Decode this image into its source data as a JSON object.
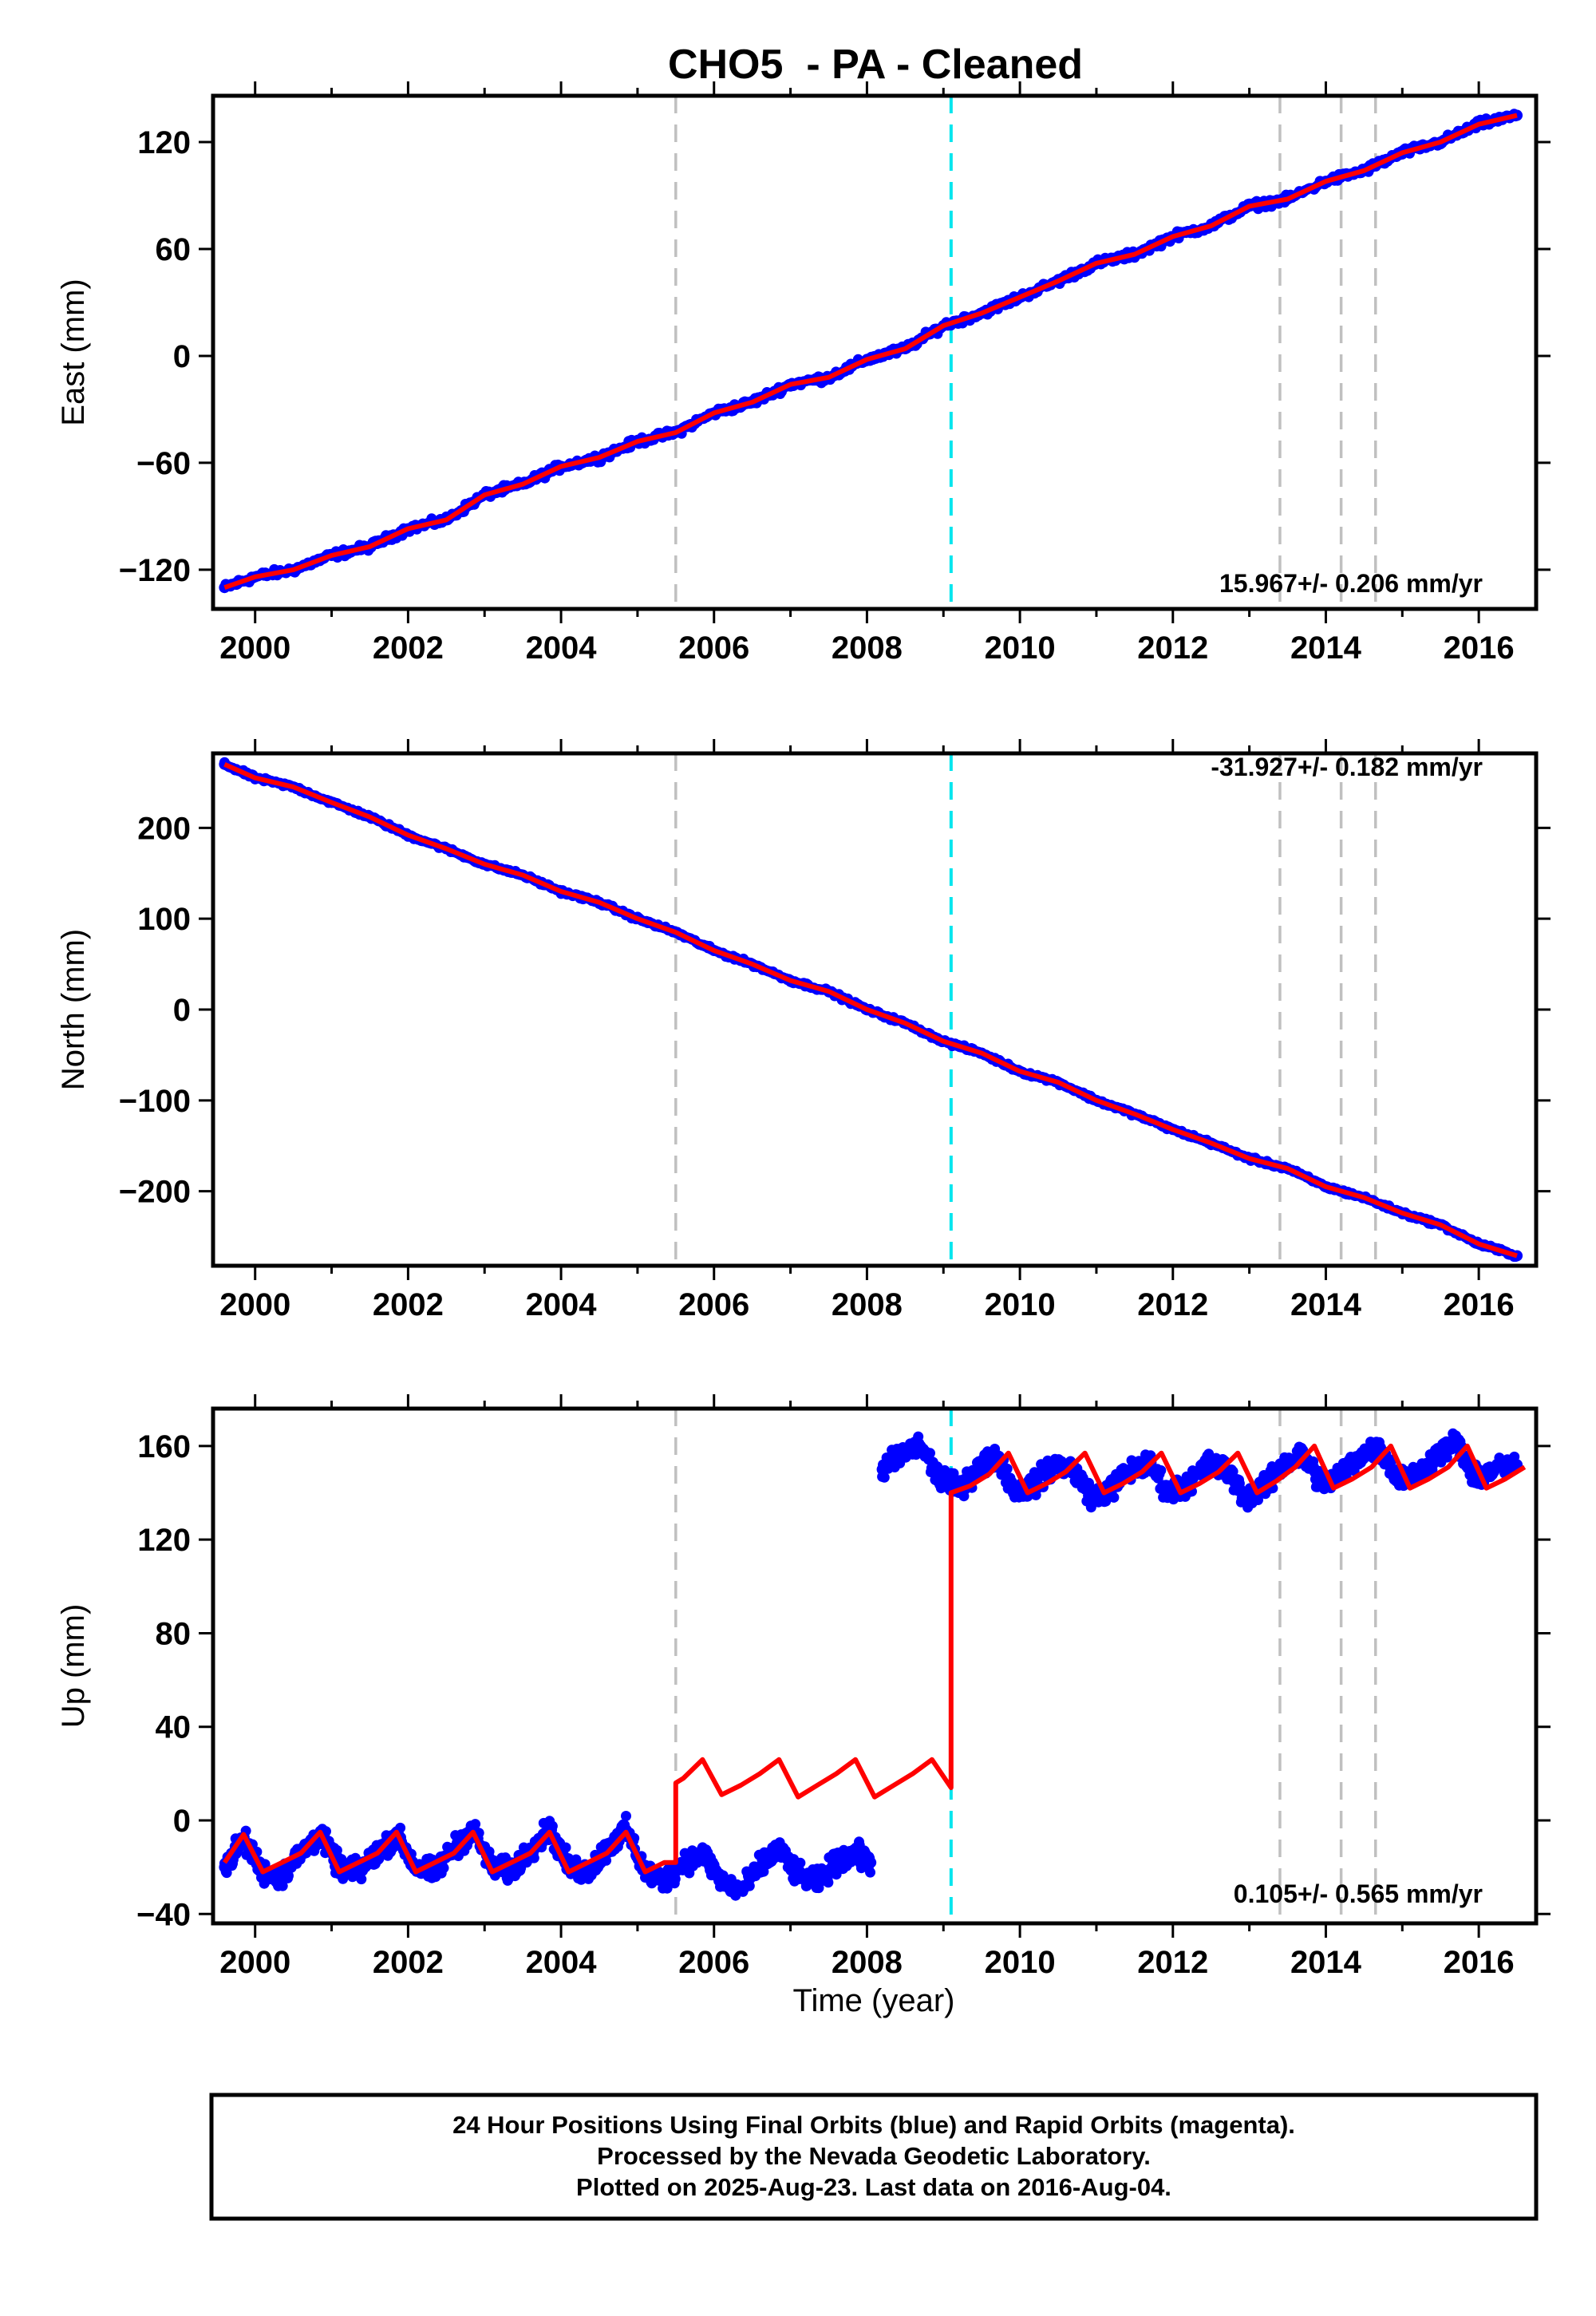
{
  "page": {
    "title": "CHO5  - PA - Cleaned",
    "footer": {
      "lines": [
        "24 Hour Positions Using Final Orbits (blue) and Rapid Orbits (magenta).",
        "Processed by the Nevada Geodetic Laboratory.",
        "Plotted on 2025-Aug-23. Last data on 2016-Aug-04."
      ]
    }
  },
  "colors": {
    "data_points": "#0000ff",
    "model_line": "#ff0000",
    "equipment_change_line": "#c0c0c0",
    "antenna_change_line": "#00e5ee",
    "frame": "#000000"
  },
  "chart_data": [
    {
      "type": "scatter",
      "panel": "east",
      "title": "",
      "xlabel": "",
      "ylabel": "East (mm)",
      "xlim": [
        1999.45,
        2016.75
      ],
      "ylim": [
        -142,
        146
      ],
      "x_ticks": [
        2000,
        2002,
        2004,
        2006,
        2008,
        2010,
        2012,
        2014,
        2016
      ],
      "x_tick_labels": [
        "2000",
        "2002",
        "2004",
        "2006",
        "2008",
        "2010",
        "2012",
        "2014",
        "2016"
      ],
      "y_ticks": [
        -120,
        -60,
        0,
        60,
        120
      ],
      "y_tick_labels": [
        "−120",
        "−60",
        "0",
        "60",
        "120"
      ],
      "rate_annotation": "15.967+/- 0.206 mm/yr",
      "rate_position": "bottom-right",
      "vertical_lines": [
        {
          "x": 2005.5,
          "kind": "equipment"
        },
        {
          "x": 2009.1,
          "kind": "antenna"
        },
        {
          "x": 2013.4,
          "kind": "equipment"
        },
        {
          "x": 2014.2,
          "kind": "equipment"
        },
        {
          "x": 2014.65,
          "kind": "equipment"
        }
      ],
      "series": [
        {
          "role": "observations",
          "x": [
            1999.6,
            2000.0,
            2000.5,
            2001.0,
            2001.5,
            2002.0,
            2002.5,
            2003.0,
            2003.5,
            2004.0,
            2004.5,
            2005.0,
            2005.5,
            2006.0,
            2006.5,
            2007.0,
            2007.5,
            2008.0,
            2008.5,
            2009.0,
            2009.5,
            2010.0,
            2010.5,
            2011.0,
            2011.5,
            2012.0,
            2012.5,
            2013.0,
            2013.5,
            2014.0,
            2014.5,
            2015.0,
            2015.5,
            2016.0,
            2016.5
          ],
          "y": [
            -130,
            -124,
            -120,
            -112,
            -107,
            -97,
            -92,
            -78,
            -72,
            -62,
            -57,
            -48,
            -43,
            -32,
            -26,
            -16,
            -12,
            -2,
            4,
            17,
            24,
            33,
            42,
            52,
            57,
            67,
            73,
            84,
            88,
            98,
            104,
            114,
            120,
            130,
            135
          ]
        },
        {
          "role": "model",
          "x": [
            1999.6,
            2000.0,
            2000.5,
            2001.0,
            2001.5,
            2002.0,
            2002.5,
            2003.0,
            2003.5,
            2004.0,
            2004.5,
            2005.0,
            2005.5,
            2006.0,
            2006.5,
            2007.0,
            2007.5,
            2008.0,
            2008.5,
            2009.0,
            2009.5,
            2010.0,
            2010.5,
            2011.0,
            2011.5,
            2012.0,
            2012.5,
            2013.0,
            2013.5,
            2014.0,
            2014.5,
            2015.0,
            2015.5,
            2016.0,
            2016.5
          ],
          "y": [
            -130,
            -124,
            -120,
            -112,
            -107,
            -97,
            -92,
            -78,
            -72,
            -62,
            -57,
            -48,
            -43,
            -32,
            -26,
            -16,
            -12,
            -2,
            4,
            17,
            24,
            33,
            42,
            52,
            57,
            67,
            73,
            84,
            88,
            98,
            104,
            114,
            120,
            130,
            135
          ]
        }
      ]
    },
    {
      "type": "scatter",
      "panel": "north",
      "title": "",
      "xlabel": "",
      "ylabel": "North (mm)",
      "xlim": [
        1999.45,
        2016.75
      ],
      "ylim": [
        -282,
        282
      ],
      "x_ticks": [
        2000,
        2002,
        2004,
        2006,
        2008,
        2010,
        2012,
        2014,
        2016
      ],
      "x_tick_labels": [
        "2000",
        "2002",
        "2004",
        "2006",
        "2008",
        "2010",
        "2012",
        "2014",
        "2016"
      ],
      "y_ticks": [
        -200,
        -100,
        0,
        100,
        200
      ],
      "y_tick_labels": [
        "−200",
        "−100",
        "0",
        "100",
        "200"
      ],
      "rate_annotation": "-31.927+/- 0.182 mm/yr",
      "rate_position": "top-right",
      "vertical_lines": [
        {
          "x": 2005.5,
          "kind": "equipment"
        },
        {
          "x": 2009.1,
          "kind": "antenna"
        },
        {
          "x": 2013.4,
          "kind": "equipment"
        },
        {
          "x": 2014.2,
          "kind": "equipment"
        },
        {
          "x": 2014.65,
          "kind": "equipment"
        }
      ],
      "series": [
        {
          "role": "observations",
          "x": [
            1999.6,
            2000.0,
            2000.5,
            2001.0,
            2001.5,
            2002.0,
            2002.5,
            2003.0,
            2003.5,
            2004.0,
            2004.5,
            2005.0,
            2005.5,
            2006.0,
            2006.5,
            2007.0,
            2007.5,
            2008.0,
            2008.5,
            2009.0,
            2009.5,
            2010.0,
            2010.5,
            2011.0,
            2011.5,
            2012.0,
            2012.5,
            2013.0,
            2013.5,
            2014.0,
            2014.5,
            2015.0,
            2015.5,
            2016.0,
            2016.5
          ],
          "y": [
            270,
            255,
            245,
            228,
            212,
            192,
            177,
            160,
            148,
            130,
            118,
            100,
            85,
            65,
            50,
            32,
            20,
            0,
            -15,
            -35,
            -48,
            -68,
            -80,
            -100,
            -115,
            -132,
            -147,
            -164,
            -175,
            -195,
            -207,
            -224,
            -237,
            -258,
            -271
          ]
        },
        {
          "role": "model",
          "x": [
            1999.6,
            2000.0,
            2000.5,
            2001.0,
            2001.5,
            2002.0,
            2002.5,
            2003.0,
            2003.5,
            2004.0,
            2004.5,
            2005.0,
            2005.5,
            2006.0,
            2006.5,
            2007.0,
            2007.5,
            2008.0,
            2008.5,
            2009.0,
            2009.5,
            2010.0,
            2010.5,
            2011.0,
            2011.5,
            2012.0,
            2012.5,
            2013.0,
            2013.5,
            2014.0,
            2014.5,
            2015.0,
            2015.5,
            2016.0,
            2016.5
          ],
          "y": [
            270,
            255,
            245,
            228,
            212,
            192,
            177,
            160,
            148,
            130,
            118,
            100,
            85,
            65,
            50,
            32,
            20,
            0,
            -15,
            -35,
            -48,
            -68,
            -80,
            -100,
            -115,
            -132,
            -147,
            -164,
            -175,
            -195,
            -207,
            -224,
            -237,
            -258,
            -271
          ]
        }
      ]
    },
    {
      "type": "scatter",
      "panel": "up",
      "title": "",
      "xlabel": "Time (year)",
      "ylabel": "Up (mm)",
      "xlim": [
        1999.45,
        2016.75
      ],
      "ylim": [
        -44,
        176
      ],
      "x_ticks": [
        2000,
        2002,
        2004,
        2006,
        2008,
        2010,
        2012,
        2014,
        2016
      ],
      "x_tick_labels": [
        "2000",
        "2002",
        "2004",
        "2006",
        "2008",
        "2010",
        "2012",
        "2014",
        "2016"
      ],
      "y_ticks": [
        -40,
        0,
        40,
        80,
        120,
        160
      ],
      "y_tick_labels": [
        "−40",
        "0",
        "40",
        "80",
        "120",
        "160"
      ],
      "rate_annotation": "0.105+/- 0.565 mm/yr",
      "rate_position": "bottom-right",
      "vertical_lines": [
        {
          "x": 2005.5,
          "kind": "equipment"
        },
        {
          "x": 2009.1,
          "kind": "antenna"
        },
        {
          "x": 2013.4,
          "kind": "equipment"
        },
        {
          "x": 2014.2,
          "kind": "equipment"
        },
        {
          "x": 2014.65,
          "kind": "equipment"
        }
      ],
      "series": [
        {
          "role": "observations",
          "x": [
            1999.6,
            1999.85,
            2000.1,
            2000.35,
            2000.6,
            2000.85,
            2001.1,
            2001.35,
            2001.6,
            2001.85,
            2002.1,
            2002.35,
            2002.6,
            2002.85,
            2003.1,
            2003.35,
            2003.6,
            2003.85,
            2004.1,
            2004.35,
            2004.6,
            2004.85,
            2005.1,
            2005.35,
            2005.6,
            2005.85,
            2006.1,
            2006.35,
            2006.6,
            2006.85,
            2007.1,
            2007.35,
            2007.6,
            2007.85,
            2008.05,
            2008.2,
            2008.45,
            2008.7,
            2008.95,
            2009.2,
            2009.45,
            2009.7,
            2009.95,
            2010.2,
            2010.45,
            2010.7,
            2010.95,
            2011.2,
            2011.45,
            2011.7,
            2011.95,
            2012.2,
            2012.45,
            2012.7,
            2012.95,
            2013.2,
            2013.45,
            2013.7,
            2013.95,
            2014.2,
            2014.45,
            2014.7,
            2014.95,
            2015.2,
            2015.45,
            2015.7,
            2015.95,
            2016.2,
            2016.5
          ],
          "y": [
            -20,
            -8,
            -22,
            -24,
            -14,
            -6,
            -20,
            -22,
            -14,
            -6,
            -20,
            -22,
            -12,
            -4,
            -20,
            -22,
            -12,
            -4,
            -20,
            -22,
            -12,
            -4,
            -22,
            -26,
            -18,
            -14,
            -26,
            -30,
            -20,
            -12,
            -24,
            -26,
            -18,
            -14,
            -18,
            150,
            156,
            160,
            146,
            142,
            150,
            156,
            140,
            144,
            152,
            150,
            138,
            142,
            150,
            152,
            140,
            144,
            152,
            150,
            138,
            142,
            152,
            156,
            144,
            148,
            156,
            160,
            146,
            148,
            156,
            162,
            146,
            150,
            152
          ]
        },
        {
          "role": "model",
          "x": [
            1999.6,
            1999.85,
            2000.1,
            2000.35,
            2000.6,
            2000.85,
            2001.1,
            2001.35,
            2001.6,
            2001.85,
            2002.1,
            2002.35,
            2002.6,
            2002.85,
            2003.1,
            2003.35,
            2003.6,
            2003.85,
            2004.1,
            2004.35,
            2004.6,
            2004.85,
            2005.1,
            2005.35,
            2005.5,
            2005.5,
            2005.6,
            2005.85,
            2006.1,
            2006.35,
            2006.6,
            2006.85,
            2007.1,
            2007.35,
            2007.6,
            2007.85,
            2008.1,
            2008.35,
            2008.6,
            2008.85,
            2009.1,
            2009.1,
            2009.35,
            2009.6,
            2009.85,
            2010.1,
            2010.35,
            2010.6,
            2010.85,
            2011.1,
            2011.35,
            2011.6,
            2011.85,
            2012.1,
            2012.35,
            2012.6,
            2012.85,
            2013.1,
            2013.35,
            2013.6,
            2013.85,
            2014.1,
            2014.35,
            2014.6,
            2014.85,
            2015.1,
            2015.35,
            2015.6,
            2015.85,
            2016.1,
            2016.35,
            2016.6
          ],
          "y": [
            -18,
            -6,
            -22,
            -18,
            -14,
            -5,
            -22,
            -18,
            -14,
            -5,
            -22,
            -18,
            -14,
            -5,
            -22,
            -18,
            -14,
            -5,
            -22,
            -18,
            -14,
            -5,
            -22,
            -18,
            -18,
            16,
            18,
            26,
            11,
            15,
            20,
            26,
            10,
            15,
            20,
            26,
            10,
            15,
            20,
            26,
            14,
            140,
            143,
            148,
            157,
            140,
            144,
            149,
            157,
            140,
            144,
            149,
            157,
            140,
            144,
            149,
            157,
            140,
            145,
            151,
            160,
            142,
            146,
            151,
            160,
            142,
            146,
            151,
            160,
            142,
            146,
            151
          ]
        }
      ]
    }
  ]
}
